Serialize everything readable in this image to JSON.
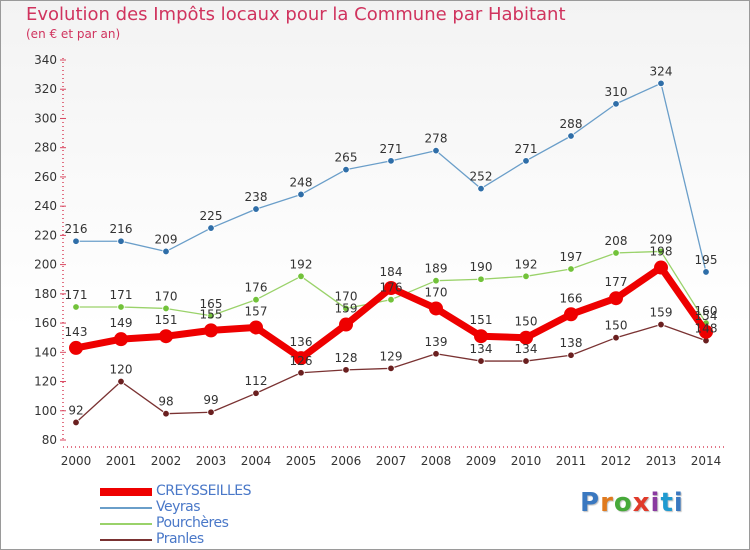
{
  "header": {
    "title": "Evolution des Impôts locaux pour la Commune par Habitant",
    "subtitle": "(en € et par an)"
  },
  "logo": {
    "text": "Proxiti",
    "letter_colors": [
      "#3a78c0",
      "#e07a1e",
      "#47a93a",
      "#e03a2a",
      "#8a3aa0",
      "#1f9ad0",
      "#3a78c0"
    ]
  },
  "chart_data": {
    "type": "line",
    "title": "Evolution des Impôts locaux pour la Commune par Habitant",
    "subtitle": "(en € et par an)",
    "xlabel": "",
    "ylabel": "",
    "x": [
      2000,
      2001,
      2002,
      2003,
      2004,
      2005,
      2006,
      2007,
      2008,
      2009,
      2010,
      2011,
      2012,
      2013,
      2014
    ],
    "ylim": [
      80,
      340
    ],
    "yticks": [
      80,
      100,
      120,
      140,
      160,
      180,
      200,
      220,
      240,
      260,
      280,
      300,
      320,
      340
    ],
    "grid": false,
    "legend_position": "bottom-left",
    "series": [
      {
        "name": "Veyras",
        "color": "#6a9ec9",
        "marker_color": "#2f6ea8",
        "values": [
          216,
          216,
          209,
          225,
          238,
          248,
          265,
          271,
          278,
          252,
          271,
          288,
          310,
          324,
          195
        ]
      },
      {
        "name": "Pourchères",
        "color": "#9ad26a",
        "marker_color": "#72c23a",
        "values": [
          171,
          171,
          170,
          165,
          176,
          192,
          170,
          176,
          189,
          190,
          192,
          197,
          208,
          209,
          160
        ]
      },
      {
        "name": "Pranles",
        "color": "#7a3232",
        "marker_color": "#6a1f1f",
        "values": [
          92,
          120,
          98,
          99,
          112,
          126,
          128,
          129,
          139,
          134,
          134,
          138,
          150,
          159,
          148
        ]
      },
      {
        "name": "CREYSSEILLES",
        "color": "#ee0000",
        "marker_color": "#ee0000",
        "values": [
          143,
          149,
          151,
          155,
          157,
          136,
          159,
          184,
          170,
          151,
          150,
          166,
          177,
          198,
          154
        ]
      }
    ],
    "legend_order": [
      "CREYSSEILLES",
      "Veyras",
      "Pourchères",
      "Pranles"
    ],
    "data_labels": {
      "Veyras": [
        "216",
        "216",
        "209",
        "225",
        "238",
        "248",
        "265",
        "271",
        "278",
        "252",
        "271",
        "288",
        "310",
        "324",
        "195"
      ],
      "Pourchères": [
        "171",
        "171",
        "170",
        "165",
        "176",
        "192",
        "170",
        "176",
        "189",
        "190",
        "192",
        "197",
        "208",
        "209",
        "160"
      ],
      "Pranles": [
        "92",
        "120",
        "98",
        "99",
        "112",
        "126",
        "128",
        "129",
        "139",
        "134",
        "134",
        "138",
        "150",
        "159",
        "148"
      ],
      "CREYSSEILLES": [
        "143",
        "149",
        "151",
        "155",
        "157",
        "136",
        "159",
        "184",
        "170",
        "151",
        "150",
        "166",
        "177",
        "198",
        "154"
      ]
    }
  }
}
